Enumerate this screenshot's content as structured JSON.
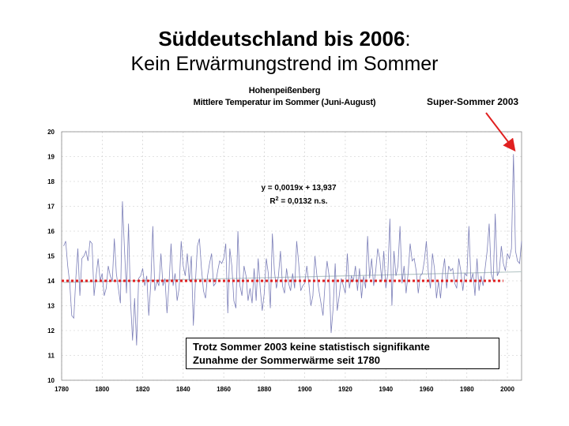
{
  "slide": {
    "title_bold": "Süddeutschland bis 2006",
    "title_colon": ":",
    "subtitle": "Kein Erwärmungstrend im Sommer"
  },
  "callout": {
    "label": "Super-Sommer 2003",
    "arrow_color": "#e02020"
  },
  "note": {
    "line1": "Trotz Sommer 2003 keine statistisch signifikante",
    "line2": "Zunahme der Sommerwärme seit 1780"
  },
  "colors": {
    "series": "#7c7fb8",
    "trend": "#b8c8c8",
    "mean_line": "#e02020",
    "grid": "#c8c8c8"
  },
  "chart_data": {
    "type": "line",
    "title": "Hohenpeißenberg",
    "subtitle": "Mittlere Temperatur im Sommer (Juni-August)",
    "xlim": [
      1780,
      2007
    ],
    "ylim": [
      10,
      20
    ],
    "x_ticks": [
      1780,
      1800,
      1820,
      1840,
      1860,
      1880,
      1900,
      1920,
      1940,
      1960,
      1980,
      2000
    ],
    "y_ticks": [
      10,
      11,
      12,
      13,
      14,
      15,
      16,
      17,
      18,
      19,
      20
    ],
    "grid": true,
    "equation": "y = 0,0019x + 13,937",
    "r2_prefix": "R",
    "r2_sup": "2",
    "r2_suffix": " = 0,0132 n.s.",
    "trend": {
      "slope": 0.0019,
      "intercept": 13.937,
      "x_start": 1781
    },
    "mean_line": {
      "value": 14.0,
      "x_from": 1780,
      "x_to": 1998
    },
    "series": [
      {
        "x_start": 1781,
        "values": [
          15.4,
          15.6,
          14.6,
          13.9,
          12.6,
          12.5,
          14.1,
          15.3,
          13.4,
          14.9,
          15.0,
          15.2,
          14.8,
          15.6,
          15.5,
          13.4,
          14.2,
          14.9,
          14.0,
          14.3,
          13.4,
          13.7,
          14.6,
          14.2,
          14.0,
          15.7,
          14.3,
          13.7,
          13.1,
          17.2,
          15.3,
          13.5,
          16.3,
          13.2,
          11.6,
          13.3,
          11.4,
          14.1,
          14.2,
          14.5,
          13.8,
          14.2,
          12.6,
          13.9,
          16.2,
          13.6,
          14.0,
          13.8,
          15.1,
          13.8,
          14.1,
          12.7,
          13.9,
          15.5,
          13.8,
          14.3,
          13.2,
          13.7,
          15.6,
          14.6,
          14.2,
          15.1,
          14.0,
          15.0,
          12.2,
          13.9,
          15.4,
          15.7,
          14.5,
          13.6,
          13.3,
          14.2,
          14.7,
          15.1,
          13.8,
          13.9,
          14.4,
          14.8,
          14.7,
          14.9,
          15.5,
          12.7,
          15.3,
          14.6,
          13.2,
          12.9,
          16.0,
          13.8,
          13.4,
          14.6,
          14.2,
          13.2,
          13.7,
          13.1,
          14.5,
          13.2,
          14.9,
          13.7,
          12.8,
          13.5,
          14.9,
          14.3,
          12.9,
          15.9,
          14.4,
          13.7,
          14.2,
          15.2,
          13.8,
          13.5,
          14.5,
          13.9,
          13.6,
          14.3,
          13.7,
          15.6,
          14.7,
          13.6,
          13.8,
          13.9,
          14.6,
          13.9,
          13.0,
          13.4,
          15.0,
          14.2,
          13.6,
          13.1,
          12.6,
          13.9,
          14.8,
          14.2,
          11.9,
          12.9,
          14.7,
          12.8,
          13.4,
          14.1,
          13.8,
          13.5,
          15.1,
          13.7,
          14.2,
          14.0,
          14.6,
          13.6,
          14.5,
          13.3,
          14.2,
          13.7,
          15.8,
          14.1,
          14.9,
          13.8,
          14.4,
          15.3,
          14.9,
          14.0,
          15.2,
          13.7,
          14.3,
          16.5,
          13.0,
          15.2,
          14.2,
          14.6,
          16.2,
          13.9,
          14.6,
          13.5,
          14.3,
          15.5,
          14.8,
          14.9,
          14.4,
          13.5,
          14.2,
          14.3,
          14.8,
          15.6,
          14.3,
          13.7,
          15.1,
          14.5,
          13.3,
          14.0,
          13.3,
          14.3,
          14.9,
          13.7,
          14.6,
          14.4,
          14.5,
          13.9,
          13.7,
          14.9,
          14.4,
          13.6,
          14.3,
          14.2,
          16.2,
          14.0,
          14.3,
          13.4,
          14.9,
          13.6,
          14.2,
          13.8,
          14.5,
          15.2,
          16.3,
          14.3,
          14.0,
          16.7,
          14.2,
          14.4,
          15.4,
          14.7,
          14.4,
          15.1,
          14.9,
          15.3,
          19.1,
          15.2,
          14.8,
          14.7,
          15.6
        ]
      }
    ]
  }
}
